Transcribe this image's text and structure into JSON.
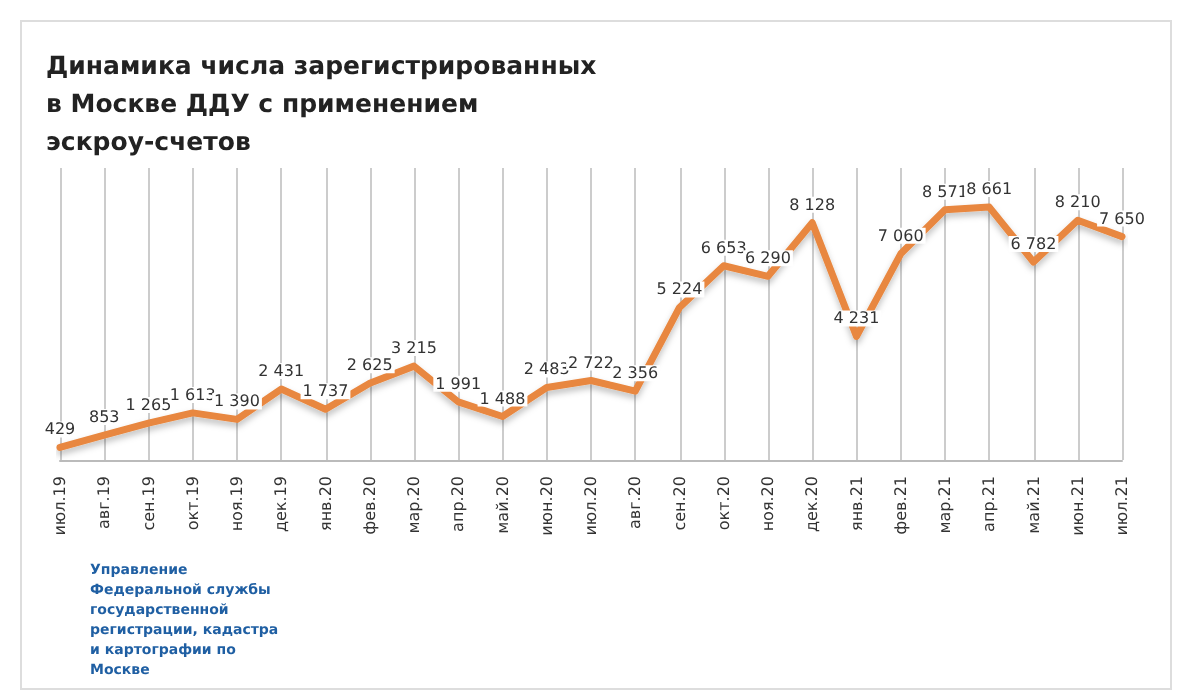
{
  "chart_data": {
    "type": "line",
    "title": "Динамика числа зарегистрированных в Москве ДДУ с применением эскроу-счетов",
    "categories": [
      "июл.19",
      "авг.19",
      "сен.19",
      "окт.19",
      "ноя.19",
      "дек.19",
      "янв.20",
      "фев.20",
      "мар.20",
      "апр.20",
      "май.20",
      "июн.20",
      "июл.20",
      "авг.20",
      "сен.20",
      "окт.20",
      "ноя.20",
      "дек.20",
      "янв.21",
      "фев.21",
      "мар.21",
      "апр.21",
      "май.21",
      "июн.21",
      "июл.21"
    ],
    "series": [
      {
        "color": "#e8873f",
        "values": [
          429,
          853,
          1265,
          1613,
          1390,
          2431,
          1737,
          2625,
          3215,
          1991,
          1488,
          2483,
          2722,
          2356,
          5224,
          6653,
          6290,
          8128,
          4231,
          7060,
          8571,
          8661,
          6782,
          8210,
          7650
        ],
        "value_labels": [
          "429",
          "853",
          "1 265",
          "1 613",
          "1 390",
          "2 431",
          "1 737",
          "2 625",
          "3 215",
          "1 991",
          "1 488",
          "2 483",
          "2 722",
          "2 356",
          "5 224",
          "6 653",
          "6 290",
          "8 128",
          "4 231",
          "7 060",
          "8 571",
          "8 661",
          "6 782",
          "8 210",
          "7 650"
        ]
      }
    ],
    "annotations": [
      "Управление Федеральной службы государственной регистрации, кадастра и картографии по Москве"
    ],
    "grid": "x",
    "tick_labels": "x",
    "marker": "none",
    "line_style": "solid"
  }
}
